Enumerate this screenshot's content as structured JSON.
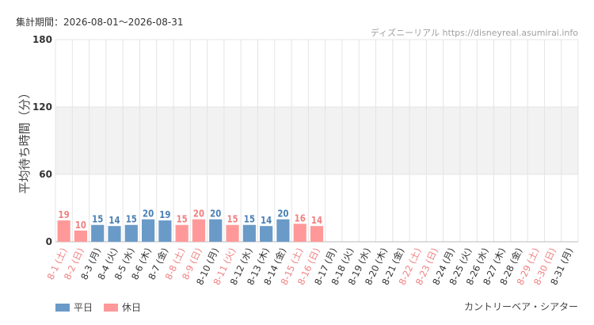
{
  "header": {
    "period": "集計期間：2026-08-01～2026-08-31",
    "attribution": "ディズニーリアル https://disneyreal.asumirai.info"
  },
  "footer": {
    "attraction": "カントリーベア・シアター"
  },
  "colors": {
    "weekday": "#6a9ac7",
    "holiday": "#ff9999",
    "weekday_text": "#4a7fb5",
    "holiday_text": "#f08080",
    "label_default": "#333333",
    "grid": "#e4e4e4",
    "band": "#f2f2f2"
  },
  "chart_data": {
    "type": "bar",
    "ylabel": "平均待ち時間（分）",
    "ylim": [
      0,
      180
    ],
    "yticks": [
      0,
      60,
      120,
      180
    ],
    "shaded_band": [
      60,
      120
    ],
    "legend_placement": "bottom-left",
    "series": [
      {
        "name": "平日",
        "color": "#6a9ac7"
      },
      {
        "name": "休日",
        "color": "#ff9999"
      }
    ],
    "categories": [
      "8-1 (土)",
      "8-2 (日)",
      "8-3 (月)",
      "8-4 (火)",
      "8-5 (水)",
      "8-6 (木)",
      "8-7 (金)",
      "8-8 (土)",
      "8-9 (日)",
      "8-10 (月)",
      "8-11 (火)",
      "8-12 (水)",
      "8-13 (木)",
      "8-14 (金)",
      "8-15 (土)",
      "8-16 (日)",
      "8-17 (月)",
      "8-18 (火)",
      "8-19 (水)",
      "8-20 (木)",
      "8-21 (金)",
      "8-22 (土)",
      "8-23 (日)",
      "8-24 (月)",
      "8-25 (火)",
      "8-26 (水)",
      "8-27 (木)",
      "8-28 (金)",
      "8-29 (土)",
      "8-30 (日)",
      "8-31 (月)"
    ],
    "values": [
      19,
      10,
      15,
      14,
      15,
      20,
      19,
      15,
      20,
      20,
      15,
      15,
      14,
      20,
      16,
      14,
      null,
      null,
      null,
      null,
      null,
      null,
      null,
      null,
      null,
      null,
      null,
      null,
      null,
      null,
      null
    ],
    "day_type": [
      "休日",
      "休日",
      "平日",
      "平日",
      "平日",
      "平日",
      "平日",
      "休日",
      "休日",
      "平日",
      "休日",
      "平日",
      "平日",
      "平日",
      "休日",
      "休日",
      "平日",
      "平日",
      "平日",
      "平日",
      "平日",
      "休日",
      "休日",
      "平日",
      "平日",
      "平日",
      "平日",
      "平日",
      "休日",
      "休日",
      "平日"
    ],
    "label_colored": [
      true,
      true,
      false,
      false,
      false,
      false,
      false,
      true,
      true,
      false,
      true,
      false,
      false,
      false,
      true,
      true,
      false,
      false,
      false,
      false,
      false,
      true,
      true,
      false,
      false,
      false,
      false,
      false,
      true,
      true,
      false
    ]
  }
}
